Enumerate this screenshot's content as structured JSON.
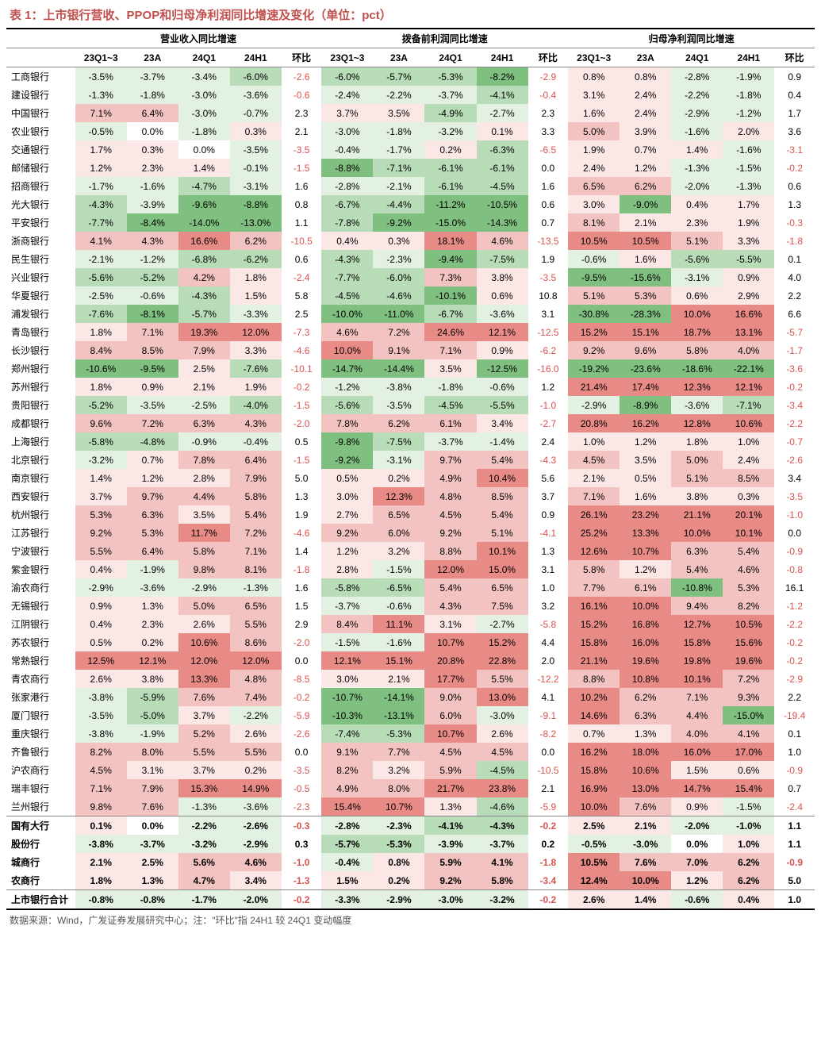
{
  "title": "表 1：上市银行营收、PPOP和归母净利润同比增速及变化（单位：pct）",
  "footnote": "数据来源：Wind，广发证券发展研究中心；注：\"环比\"指 24H1 较 24Q1 变动幅度",
  "group_headers": [
    "营业收入同比增速",
    "拨备前利润同比增速",
    "归母净利润同比增速"
  ],
  "sub_headers": [
    "23Q1~3",
    "23A",
    "24Q1",
    "24H1",
    "环比"
  ],
  "colors": {
    "neg_strong": "#7fbf7f",
    "neg_mid": "#b8dcb8",
    "neg_light": "#e3f1e3",
    "neutral": "#ffffff",
    "pos_light": "#fbe7e6",
    "pos_mid": "#f3c3c1",
    "pos_strong": "#e88a86",
    "hb_neg_text": "#d9534f",
    "hb_pos_text": "#000000"
  },
  "thresholds_comment": "color chosen per-cell by value: <=-8 neg_strong, <=-4 neg_mid, <0 neg_light, 0 neutral, <4 pos_light, <10 pos_mid, else pos_strong",
  "banks": [
    {
      "name": "工商银行",
      "v": [
        -3.5,
        -3.7,
        -3.4,
        -6.0,
        -2.6,
        -6.0,
        -5.7,
        -5.3,
        -8.2,
        -2.9,
        0.8,
        0.8,
        -2.8,
        -1.9,
        0.9
      ]
    },
    {
      "name": "建设银行",
      "v": [
        -1.3,
        -1.8,
        -3.0,
        -3.6,
        -0.6,
        -2.4,
        -2.2,
        -3.7,
        -4.1,
        -0.4,
        3.1,
        2.4,
        -2.2,
        -1.8,
        0.4
      ]
    },
    {
      "name": "中国银行",
      "v": [
        7.1,
        6.4,
        -3.0,
        -0.7,
        2.3,
        3.7,
        3.5,
        -4.9,
        -2.7,
        2.3,
        1.6,
        2.4,
        -2.9,
        -1.2,
        1.7
      ]
    },
    {
      "name": "农业银行",
      "v": [
        -0.5,
        0.0,
        -1.8,
        0.3,
        2.1,
        -3.0,
        -1.8,
        -3.2,
        0.1,
        3.3,
        5.0,
        3.9,
        -1.6,
        2.0,
        3.6
      ]
    },
    {
      "name": "交通银行",
      "v": [
        1.7,
        0.3,
        0.0,
        -3.5,
        -3.5,
        -0.4,
        -1.7,
        0.2,
        -6.3,
        -6.5,
        1.9,
        0.7,
        1.4,
        -1.6,
        -3.1
      ]
    },
    {
      "name": "邮储银行",
      "v": [
        1.2,
        2.3,
        1.4,
        -0.1,
        -1.5,
        -8.8,
        -7.1,
        -6.1,
        -6.1,
        0.0,
        2.4,
        1.2,
        -1.3,
        -1.5,
        -0.2
      ]
    },
    {
      "name": "招商银行",
      "v": [
        -1.7,
        -1.6,
        -4.7,
        -3.1,
        1.6,
        -2.8,
        -2.1,
        -6.1,
        -4.5,
        1.6,
        6.5,
        6.2,
        -2.0,
        -1.3,
        0.6
      ]
    },
    {
      "name": "光大银行",
      "v": [
        -4.3,
        -3.9,
        -9.6,
        -8.8,
        0.8,
        -6.7,
        -4.4,
        -11.2,
        -10.5,
        0.6,
        3.0,
        -9.0,
        0.4,
        1.7,
        1.3
      ]
    },
    {
      "name": "平安银行",
      "v": [
        -7.7,
        -8.4,
        -14.0,
        -13.0,
        1.1,
        -7.8,
        -9.2,
        -15.0,
        -14.3,
        0.7,
        8.1,
        2.1,
        2.3,
        1.9,
        -0.3
      ]
    },
    {
      "name": "浙商银行",
      "v": [
        4.1,
        4.3,
        16.6,
        6.2,
        -10.5,
        0.4,
        0.3,
        18.1,
        4.6,
        -13.5,
        10.5,
        10.5,
        5.1,
        3.3,
        -1.8
      ]
    },
    {
      "name": "民生银行",
      "v": [
        -2.1,
        -1.2,
        -6.8,
        -6.2,
        0.6,
        -4.3,
        -2.3,
        -9.4,
        -7.5,
        1.9,
        -0.6,
        1.6,
        -5.6,
        -5.5,
        0.1
      ]
    },
    {
      "name": "兴业银行",
      "v": [
        -5.6,
        -5.2,
        4.2,
        1.8,
        -2.4,
        -7.7,
        -6.0,
        7.3,
        3.8,
        -3.5,
        -9.5,
        -15.6,
        -3.1,
        0.9,
        4.0
      ]
    },
    {
      "name": "华夏银行",
      "v": [
        -2.5,
        -0.6,
        -4.3,
        1.5,
        5.8,
        -4.5,
        -4.6,
        -10.1,
        0.6,
        10.8,
        5.1,
        5.3,
        0.6,
        2.9,
        2.2
      ]
    },
    {
      "name": "浦发银行",
      "v": [
        -7.6,
        -8.1,
        -5.7,
        -3.3,
        2.5,
        -10.0,
        -11.0,
        -6.7,
        -3.6,
        3.1,
        -30.8,
        -28.3,
        10.0,
        16.6,
        6.6
      ]
    },
    {
      "name": "青岛银行",
      "v": [
        1.8,
        7.1,
        19.3,
        12.0,
        -7.3,
        4.6,
        7.2,
        24.6,
        12.1,
        -12.5,
        15.2,
        15.1,
        18.7,
        13.1,
        -5.7
      ]
    },
    {
      "name": "长沙银行",
      "v": [
        8.4,
        8.5,
        7.9,
        3.3,
        -4.6,
        10.0,
        9.1,
        7.1,
        0.9,
        -6.2,
        9.2,
        9.6,
        5.8,
        4.0,
        -1.7
      ]
    },
    {
      "name": "郑州银行",
      "v": [
        -10.6,
        -9.5,
        2.5,
        -7.6,
        -10.1,
        -14.7,
        -14.4,
        3.5,
        -12.5,
        -16.0,
        -19.2,
        -23.6,
        -18.6,
        -22.1,
        -3.6
      ]
    },
    {
      "name": "苏州银行",
      "v": [
        1.8,
        0.9,
        2.1,
        1.9,
        -0.2,
        -1.2,
        -3.8,
        -1.8,
        -0.6,
        1.2,
        21.4,
        17.4,
        12.3,
        12.1,
        -0.2
      ]
    },
    {
      "name": "贵阳银行",
      "v": [
        -5.2,
        -3.5,
        -2.5,
        -4.0,
        -1.5,
        -5.6,
        -3.5,
        -4.5,
        -5.5,
        -1.0,
        -2.9,
        -8.9,
        -3.6,
        -7.1,
        -3.4
      ]
    },
    {
      "name": "成都银行",
      "v": [
        9.6,
        7.2,
        6.3,
        4.3,
        -2.0,
        7.8,
        6.2,
        6.1,
        3.4,
        -2.7,
        20.8,
        16.2,
        12.8,
        10.6,
        -2.2
      ]
    },
    {
      "name": "上海银行",
      "v": [
        -5.8,
        -4.8,
        -0.9,
        -0.4,
        0.5,
        -9.8,
        -7.5,
        -3.7,
        -1.4,
        2.4,
        1.0,
        1.2,
        1.8,
        1.0,
        -0.7
      ]
    },
    {
      "name": "北京银行",
      "v": [
        -3.2,
        0.7,
        7.8,
        6.4,
        -1.5,
        -9.2,
        -3.1,
        9.7,
        5.4,
        -4.3,
        4.5,
        3.5,
        5.0,
        2.4,
        -2.6
      ]
    },
    {
      "name": "南京银行",
      "v": [
        1.4,
        1.2,
        2.8,
        7.9,
        5.0,
        0.5,
        0.2,
        4.9,
        10.4,
        5.6,
        2.1,
        0.5,
        5.1,
        8.5,
        3.4
      ]
    },
    {
      "name": "西安银行",
      "v": [
        3.7,
        9.7,
        4.4,
        5.8,
        1.3,
        3.0,
        12.3,
        4.8,
        8.5,
        3.7,
        7.1,
        1.6,
        3.8,
        0.3,
        -3.5
      ]
    },
    {
      "name": "杭州银行",
      "v": [
        5.3,
        6.3,
        3.5,
        5.4,
        1.9,
        2.7,
        6.5,
        4.5,
        5.4,
        0.9,
        26.1,
        23.2,
        21.1,
        20.1,
        -1.0
      ]
    },
    {
      "name": "江苏银行",
      "v": [
        9.2,
        5.3,
        11.7,
        7.2,
        -4.6,
        9.2,
        6.0,
        9.2,
        5.1,
        -4.1,
        25.2,
        13.3,
        10.0,
        10.1,
        0.0
      ]
    },
    {
      "name": "宁波银行",
      "v": [
        5.5,
        6.4,
        5.8,
        7.1,
        1.4,
        1.2,
        3.2,
        8.8,
        10.1,
        1.3,
        12.6,
        10.7,
        6.3,
        5.4,
        -0.9
      ]
    },
    {
      "name": "紫金银行",
      "v": [
        0.4,
        -1.9,
        9.8,
        8.1,
        -1.8,
        2.8,
        -1.5,
        12.0,
        15.0,
        3.1,
        5.8,
        1.2,
        5.4,
        4.6,
        -0.8
      ]
    },
    {
      "name": "渝农商行",
      "v": [
        -2.9,
        -3.6,
        -2.9,
        -1.3,
        1.6,
        -5.8,
        -6.5,
        5.4,
        6.5,
        1.0,
        7.7,
        6.1,
        -10.8,
        5.3,
        16.1
      ]
    },
    {
      "name": "无锡银行",
      "v": [
        0.9,
        1.3,
        5.0,
        6.5,
        1.5,
        -3.7,
        -0.6,
        4.3,
        7.5,
        3.2,
        16.1,
        10.0,
        9.4,
        8.2,
        -1.2
      ]
    },
    {
      "name": "江阴银行",
      "v": [
        0.4,
        2.3,
        2.6,
        5.5,
        2.9,
        8.4,
        11.1,
        3.1,
        -2.7,
        -5.8,
        15.2,
        16.8,
        12.7,
        10.5,
        -2.2
      ]
    },
    {
      "name": "苏农银行",
      "v": [
        0.5,
        0.2,
        10.6,
        8.6,
        -2.0,
        -1.5,
        -1.6,
        10.7,
        15.2,
        4.4,
        15.8,
        16.0,
        15.8,
        15.6,
        -0.2
      ]
    },
    {
      "name": "常熟银行",
      "v": [
        12.5,
        12.1,
        12.0,
        12.0,
        0.0,
        12.1,
        15.1,
        20.8,
        22.8,
        2.0,
        21.1,
        19.6,
        19.8,
        19.6,
        -0.2
      ]
    },
    {
      "name": "青农商行",
      "v": [
        2.6,
        3.8,
        13.3,
        4.8,
        -8.5,
        3.0,
        2.1,
        17.7,
        5.5,
        -12.2,
        8.8,
        10.8,
        10.1,
        7.2,
        -2.9
      ]
    },
    {
      "name": "张家港行",
      "v": [
        -3.8,
        -5.9,
        7.6,
        7.4,
        -0.2,
        -10.7,
        -14.1,
        9.0,
        13.0,
        4.1,
        10.2,
        6.2,
        7.1,
        9.3,
        2.2
      ]
    },
    {
      "name": "厦门银行",
      "v": [
        -3.5,
        -5.0,
        3.7,
        -2.2,
        -5.9,
        -10.3,
        -13.1,
        6.0,
        -3.0,
        -9.1,
        14.6,
        6.3,
        4.4,
        -15.0,
        -19.4
      ]
    },
    {
      "name": "重庆银行",
      "v": [
        -3.8,
        -1.9,
        5.2,
        2.6,
        -2.6,
        -7.4,
        -5.3,
        10.7,
        2.6,
        -8.2,
        0.7,
        1.3,
        4.0,
        4.1,
        0.1
      ]
    },
    {
      "name": "齐鲁银行",
      "v": [
        8.2,
        8.0,
        5.5,
        5.5,
        -0.0,
        9.1,
        7.7,
        4.5,
        4.5,
        0.0,
        16.2,
        18.0,
        16.0,
        17.0,
        1.0
      ]
    },
    {
      "name": "沪农商行",
      "v": [
        4.5,
        3.1,
        3.7,
        0.2,
        -3.5,
        8.2,
        3.2,
        5.9,
        -4.5,
        -10.5,
        15.8,
        10.6,
        1.5,
        0.6,
        -0.9
      ]
    },
    {
      "name": "瑞丰银行",
      "v": [
        7.1,
        7.9,
        15.3,
        14.9,
        -0.5,
        4.9,
        8.0,
        21.7,
        23.8,
        2.1,
        16.9,
        13.0,
        14.7,
        15.4,
        0.7
      ]
    },
    {
      "name": "兰州银行",
      "v": [
        9.8,
        7.6,
        -1.3,
        -3.6,
        -2.3,
        15.4,
        10.7,
        1.3,
        -4.6,
        -5.9,
        10.0,
        7.6,
        0.9,
        -1.5,
        -2.4
      ]
    }
  ],
  "summary": [
    {
      "name": "国有大行",
      "v": [
        0.1,
        0.0,
        -2.2,
        -2.6,
        -0.3,
        -2.8,
        -2.3,
        -4.1,
        -4.3,
        -0.2,
        2.5,
        2.1,
        -2.0,
        -1.0,
        1.1
      ]
    },
    {
      "name": "股份行",
      "v": [
        -3.8,
        -3.7,
        -3.2,
        -2.9,
        0.3,
        -5.7,
        -5.3,
        -3.9,
        -3.7,
        0.2,
        -0.5,
        -3.0,
        0.0,
        1.0,
        1.1
      ]
    },
    {
      "name": "城商行",
      "v": [
        2.1,
        2.5,
        5.6,
        4.6,
        -1.0,
        -0.4,
        0.8,
        5.9,
        4.1,
        -1.8,
        10.5,
        7.6,
        7.0,
        6.2,
        -0.9
      ]
    },
    {
      "name": "农商行",
      "v": [
        1.8,
        1.3,
        4.7,
        3.4,
        -1.3,
        1.5,
        0.2,
        9.2,
        5.8,
        -3.4,
        12.4,
        10.0,
        1.2,
        6.2,
        5.0
      ]
    }
  ],
  "total": {
    "name": "上市银行合计",
    "v": [
      -0.8,
      -0.8,
      -1.7,
      -2.0,
      -0.2,
      -3.3,
      -2.9,
      -3.0,
      -3.2,
      -0.2,
      2.6,
      1.4,
      -0.6,
      0.4,
      1.0
    ]
  }
}
